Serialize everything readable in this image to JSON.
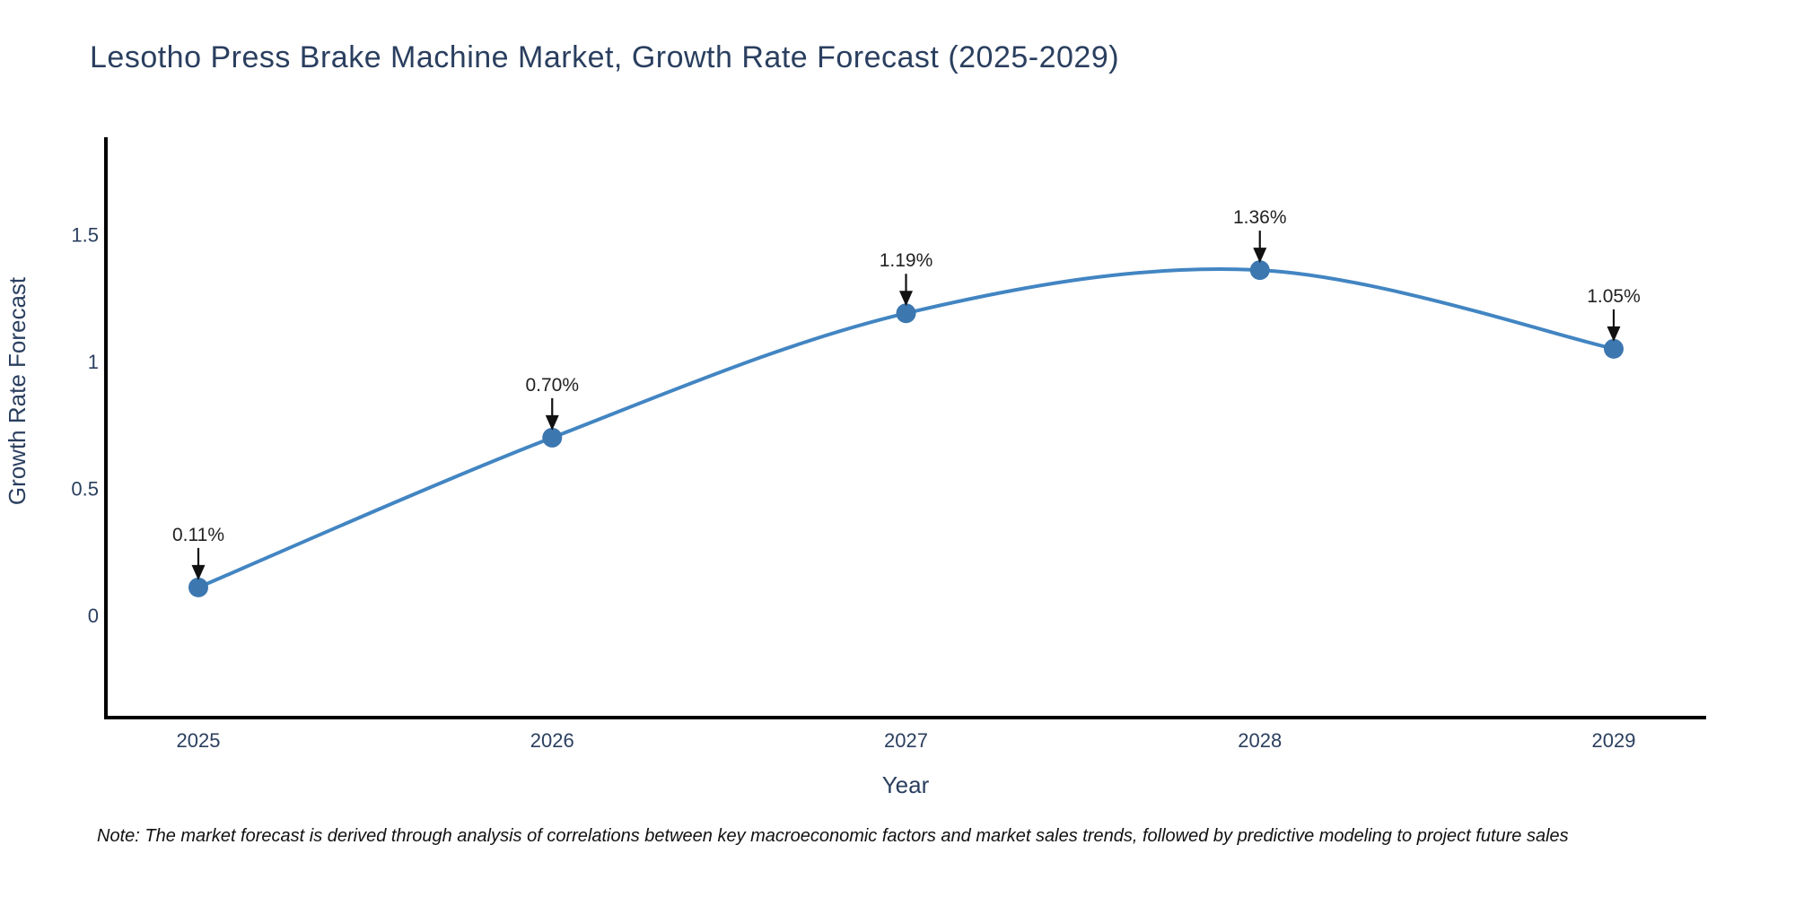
{
  "title": "Lesotho Press Brake Machine Market, Growth Rate Forecast (2025-2029)",
  "note": "Note: The market forecast is derived through analysis of correlations between key macroeconomic factors and market sales trends, followed by predictive modeling to project future sales",
  "chart_data": {
    "type": "line",
    "title": "Lesotho Press Brake Machine Market, Growth Rate Forecast (2025-2029)",
    "x": [
      "2025",
      "2026",
      "2027",
      "2028",
      "2029"
    ],
    "series": [
      {
        "name": "Growth Rate Forecast",
        "values": [
          0.11,
          0.7,
          1.19,
          1.36,
          1.05
        ]
      }
    ],
    "point_labels": [
      "0.11%",
      "0.70%",
      "1.19%",
      "1.36%",
      "1.05%"
    ],
    "xlabel": "Year",
    "ylabel": "Growth Rate Forecast",
    "y_ticks": [
      0,
      0.5,
      1,
      1.5
    ],
    "y_tick_labels": [
      "0",
      "0.5",
      "1",
      "1.5"
    ],
    "ylim": [
      -0.4,
      1.9
    ],
    "grid": false,
    "legend": "none",
    "line_style": "spline",
    "markers": true,
    "annotations": "value-labels-with-down-arrows",
    "colors": {
      "line": "#4285c2",
      "marker": "#3c77b0",
      "axis_text": "#2a3f5f",
      "title_text": "#2a3f5f",
      "annotation_text": "#222222",
      "arrow": "#111111",
      "axis_line": "#000000",
      "note_text": "#111111",
      "background": "#ffffff"
    }
  }
}
